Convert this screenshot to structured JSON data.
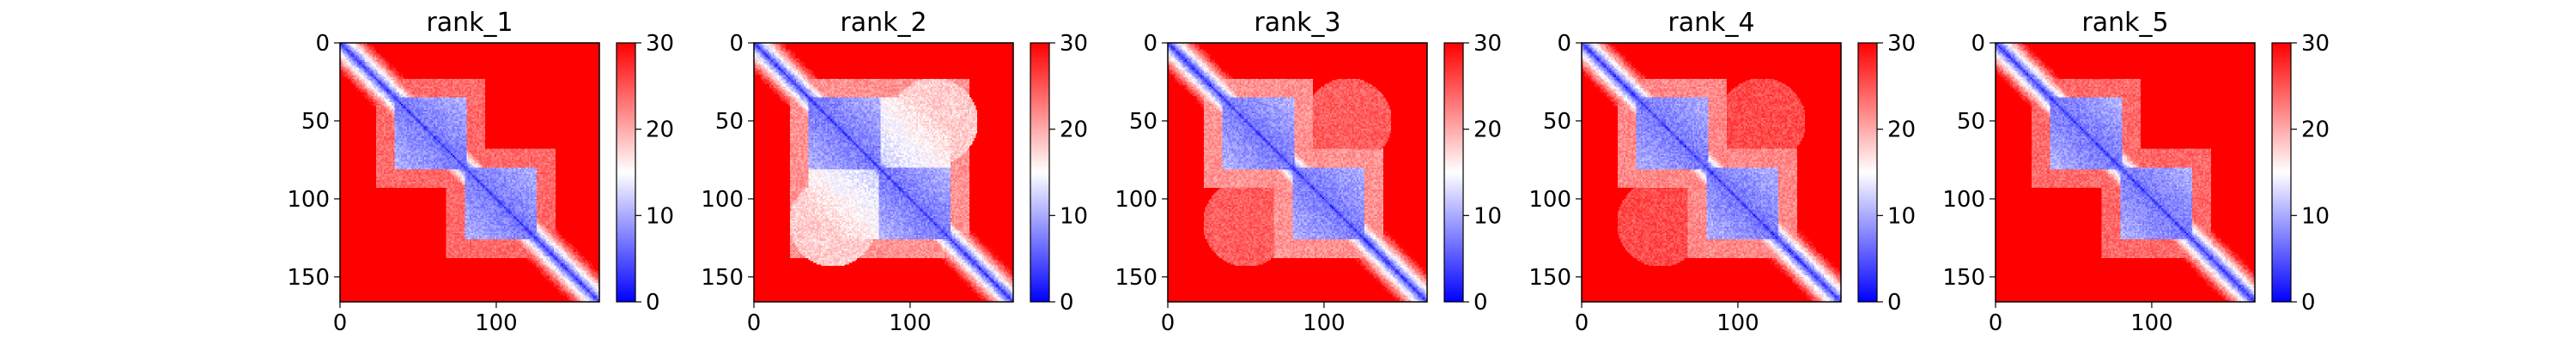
{
  "chart_data": [
    {
      "type": "heatmap",
      "title": "rank_1",
      "xlim": [
        0,
        166
      ],
      "ylim": [
        166,
        0
      ],
      "xticks": [
        0,
        100
      ],
      "yticks": [
        0,
        50,
        100,
        150
      ],
      "colorbar": {
        "ticks": [
          0,
          10,
          20,
          30
        ],
        "range": [
          0,
          30
        ],
        "cmap": "bwr",
        "colors": [
          "#0000ff",
          "#ffffff",
          "#ff0000"
        ]
      },
      "blocks": [
        [
          35,
          80
        ],
        [
          80,
          125
        ]
      ],
      "cross": [],
      "halo": 0.35
    },
    {
      "type": "heatmap",
      "title": "rank_2",
      "xlim": [
        0,
        166
      ],
      "ylim": [
        166,
        0
      ],
      "xticks": [
        0,
        100
      ],
      "yticks": [
        0,
        50,
        100,
        150
      ],
      "colorbar": {
        "ticks": [
          0,
          10,
          20,
          30
        ],
        "range": [
          0,
          30
        ],
        "cmap": "bwr",
        "colors": [
          "#0000ff",
          "#ffffff",
          "#ff0000"
        ]
      },
      "blocks": [
        [
          35,
          80
        ],
        [
          80,
          125
        ],
        [
          35,
          125
        ]
      ],
      "cross": [
        [
          50,
          115,
          0.55
        ]
      ],
      "halo": 0.55
    },
    {
      "type": "heatmap",
      "title": "rank_3",
      "xlim": [
        0,
        166
      ],
      "ylim": [
        166,
        0
      ],
      "xticks": [
        0,
        100
      ],
      "yticks": [
        0,
        50,
        100,
        150
      ],
      "colorbar": {
        "ticks": [
          0,
          10,
          20,
          30
        ],
        "range": [
          0,
          30
        ],
        "cmap": "bwr",
        "colors": [
          "#0000ff",
          "#ffffff",
          "#ff0000"
        ]
      },
      "blocks": [
        [
          35,
          80
        ],
        [
          80,
          125
        ]
      ],
      "cross": [
        [
          50,
          115,
          0.25
        ]
      ],
      "halo": 0.55
    },
    {
      "type": "heatmap",
      "title": "rank_4",
      "xlim": [
        0,
        166
      ],
      "ylim": [
        166,
        0
      ],
      "xticks": [
        0,
        100
      ],
      "yticks": [
        0,
        50,
        100,
        150
      ],
      "colorbar": {
        "ticks": [
          0,
          10,
          20,
          30
        ],
        "range": [
          0,
          30
        ],
        "cmap": "bwr",
        "colors": [
          "#0000ff",
          "#ffffff",
          "#ff0000"
        ]
      },
      "blocks": [
        [
          35,
          80
        ],
        [
          80,
          125
        ]
      ],
      "cross": [
        [
          50,
          115,
          0.2
        ]
      ],
      "halo": 0.5
    },
    {
      "type": "heatmap",
      "title": "rank_5",
      "xlim": [
        0,
        166
      ],
      "ylim": [
        166,
        0
      ],
      "xticks": [
        0,
        100
      ],
      "yticks": [
        0,
        50,
        100,
        150
      ],
      "colorbar": {
        "ticks": [
          0,
          10,
          20,
          30
        ],
        "range": [
          0,
          30
        ],
        "cmap": "bwr",
        "colors": [
          "#0000ff",
          "#ffffff",
          "#ff0000"
        ]
      },
      "blocks": [
        [
          35,
          80
        ],
        [
          80,
          125
        ]
      ],
      "cross": [],
      "halo": 0.35
    }
  ]
}
